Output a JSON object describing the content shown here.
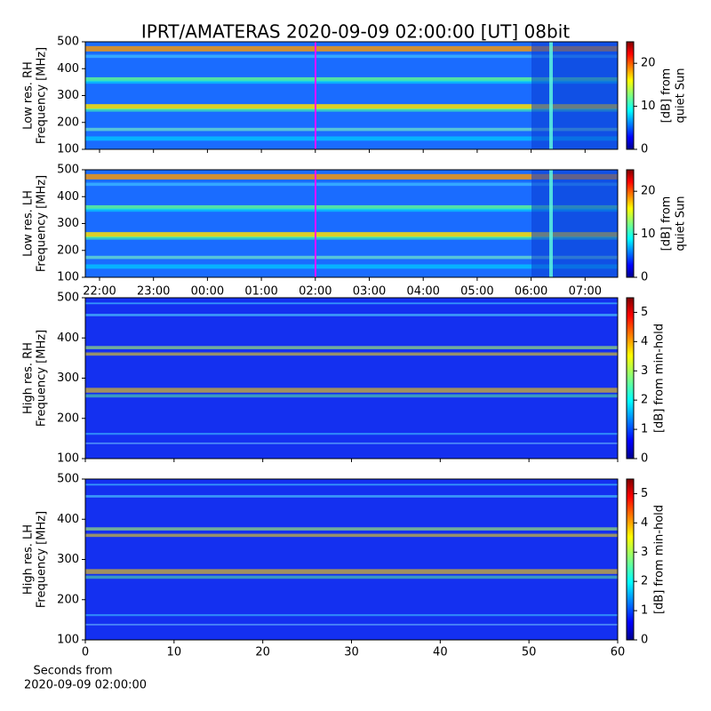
{
  "chart_data": [
    {
      "type": "spectrogram",
      "title": "IPRT/AMATERAS 2020-09-09 02:00:00 [UT]   08bit",
      "ylabel": [
        "Low res. RH",
        "Frequency [MHz]"
      ],
      "ylim": [
        100,
        500
      ],
      "yticks": [
        100,
        200,
        300,
        400,
        500
      ],
      "colorbar_label": [
        "[dB] from",
        "quiet Sun"
      ],
      "clim": [
        0,
        25
      ],
      "cticks": [
        0,
        10,
        20
      ]
    },
    {
      "type": "spectrogram",
      "ylabel": [
        "Low res. LH",
        "Frequency [MHz]"
      ],
      "ylim": [
        100,
        500
      ],
      "yticks": [
        100,
        200,
        300,
        400,
        500
      ],
      "xticks": [
        "22:00",
        "23:00",
        "00:00",
        "01:00",
        "02:00",
        "03:00",
        "04:00",
        "05:00",
        "06:00",
        "07:00"
      ],
      "colorbar_label": [
        "[dB] from",
        "quiet Sun"
      ],
      "clim": [
        0,
        25
      ],
      "cticks": [
        0,
        10,
        20
      ]
    },
    {
      "type": "spectrogram",
      "ylabel": [
        "High res. RH",
        "Frequency [MHz]"
      ],
      "ylim": [
        100,
        500
      ],
      "yticks": [
        100,
        200,
        300,
        400,
        500
      ],
      "xlim": [
        0,
        60
      ],
      "colorbar_label": "[dB] from min-hold",
      "clim": [
        0,
        5.5
      ],
      "cticks": [
        0,
        1,
        2,
        3,
        4,
        5
      ]
    },
    {
      "type": "spectrogram",
      "ylabel": [
        "High res. LH",
        "Frequency [MHz]"
      ],
      "ylim": [
        100,
        500
      ],
      "yticks": [
        100,
        200,
        300,
        400,
        500
      ],
      "xlim": [
        0,
        60
      ],
      "xticks": [
        0,
        10,
        20,
        30,
        40,
        50,
        60
      ],
      "xlabel": [
        "Seconds from",
        "2020-09-09 02:00:00"
      ],
      "colorbar_label": "[dB] from min-hold",
      "clim": [
        0,
        5.5
      ],
      "cticks": [
        0,
        1,
        2,
        3,
        4,
        5
      ]
    }
  ]
}
